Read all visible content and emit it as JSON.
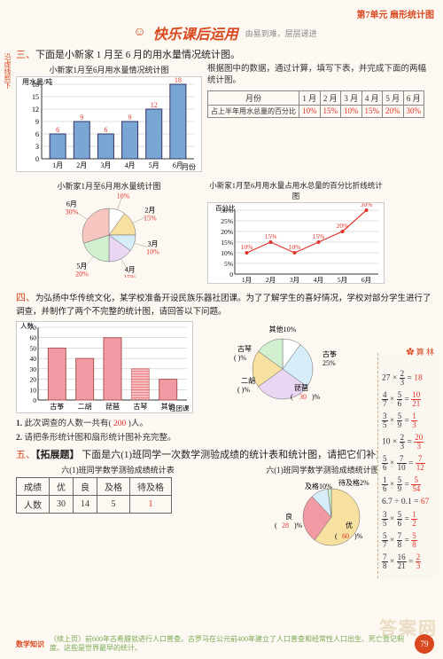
{
  "header": {
    "unit": "第7单元  扇形统计图"
  },
  "title": {
    "main": "快乐课后运用",
    "sub": "由易到难，层层递进"
  },
  "sec3": {
    "heading_num": "三、",
    "heading_text": "下面是小新家 1 月至 6 月的用水量情况统计图。",
    "bar": {
      "title": "小新家1月至6月用水量情况统计图",
      "ylabel": "用水量/吨",
      "xlabel": "月份",
      "categories": [
        "1月",
        "2月",
        "3月",
        "4月",
        "5月",
        "6月"
      ],
      "values": [
        6,
        9,
        6,
        9,
        12,
        18
      ],
      "value_labels": [
        "6",
        "9",
        "6",
        "9",
        "12",
        "18"
      ],
      "yticks": [
        0,
        3,
        6,
        9,
        12,
        15,
        18
      ],
      "bar_color": "#79a6d2",
      "grid_color": "#bbb",
      "label_color": "#e3342c"
    },
    "desc": "根据图中的数据，通过计算，填写下表，并完成下面的两幅统计图。",
    "table": {
      "head": [
        "月份",
        "1 月",
        "2 月",
        "3 月",
        "4 月",
        "5 月",
        "6 月"
      ],
      "rowlabel": "占上半年用水总量的百分比",
      "values": [
        "10%",
        "15%",
        "10%",
        "15%",
        "20%",
        "30%"
      ]
    },
    "pie": {
      "title": "小新家1月至6月用水量统计图",
      "slices": [
        {
          "label": "1月",
          "pct": 10,
          "pct_txt": "10%",
          "color": "#ffffff"
        },
        {
          "label": "2月",
          "pct": 15,
          "pct_txt": "15%",
          "color": "#f7e1a0"
        },
        {
          "label": "3月",
          "pct": 10,
          "pct_txt": "10%",
          "color": "#d6ecf7"
        },
        {
          "label": "4月",
          "pct": 15,
          "pct_txt": "15%",
          "color": "#e9d6f2"
        },
        {
          "label": "5月",
          "pct": 20,
          "pct_txt": "20%",
          "color": "#d0f0d0"
        },
        {
          "label": "6月",
          "pct": 30,
          "pct_txt": "30%",
          "color": "#f7c6c0"
        }
      ]
    },
    "line": {
      "title": "小新家1月至6月用水量占用水总量的百分比折线统计图",
      "ylabel": "百分比",
      "categories": [
        "1月",
        "2月",
        "3月",
        "4月",
        "5月",
        "6月"
      ],
      "yticks": [
        0,
        5,
        10,
        15,
        20,
        25,
        30
      ],
      "ytick_labels": [
        "0",
        "5%",
        "10%",
        "15%",
        "20%",
        "25%",
        "30%"
      ],
      "values": [
        10,
        15,
        10,
        15,
        20,
        30
      ],
      "point_labels": [
        "10%",
        "15%",
        "10%",
        "15%",
        "20%",
        "30%"
      ],
      "line_color": "#e3342c",
      "grid_color": "#bbb"
    }
  },
  "sec4": {
    "heading_num": "四、",
    "heading_text": "为弘扬中华传统文化，某学校准备开设民族乐器社团课。为了了解学生的喜好情况，学校对部分学生进行了调查，并制作了两个不完整的统计图，请回答以下问题。",
    "bar": {
      "ylabel": "人数",
      "xlabel": "社团课",
      "categories": [
        "古筝",
        "二胡",
        "琵琶",
        "古琴",
        "其他"
      ],
      "values": [
        50,
        40,
        60,
        30,
        20
      ],
      "yticks": [
        0,
        10,
        20,
        30,
        40,
        50,
        60,
        70
      ],
      "bar_color": "#f29aa3",
      "hatched_index": 3,
      "grid_color": "#bbb"
    },
    "pie": {
      "slices": [
        {
          "label": "其他",
          "pct": 10,
          "txt": "其他10%",
          "color": "#fff"
        },
        {
          "label": "古筝",
          "pct": 25,
          "txt": "古筝25%",
          "color": "#d6ecf7"
        },
        {
          "label": "琵琶",
          "pct": 30,
          "txt": "琵琶( 30 )%",
          "ans": "30",
          "color": "#e9d6f2"
        },
        {
          "label": "二胡",
          "pct": 20,
          "txt": "二胡(  )%",
          "color": "#f7e1a0"
        },
        {
          "label": "古琴",
          "pct": 15,
          "txt": "古琴(  )%",
          "color": "#d0f0d0"
        }
      ]
    },
    "q1_label": "1.",
    "q1": "此次调查的人数一共有(",
    "q1_ans": " 200 ",
    "q1_tail": ")人。",
    "q2_label": "2.",
    "q2": "请把条形统计图和扇形统计图补充完整。"
  },
  "sec5": {
    "heading_num": "五、",
    "heading_tag": "【拓展题】",
    "heading_text": "下面是六(1)班同学一次数学测验成绩的统计表和统计图，请把它们补充完整。",
    "table_title": "六(1)班同学数学测验成绩统计表",
    "table": {
      "head": [
        "成绩",
        "优",
        "良",
        "及格",
        "待及格"
      ],
      "row": [
        "人数",
        "30",
        "14",
        "5",
        "1"
      ],
      "ans_index": 4
    },
    "pie_title": "六(1)班同学数学测验成绩统计图",
    "pie": {
      "slices": [
        {
          "label": "优",
          "txt": "优( 60 )%",
          "pct": 60,
          "ans": "60",
          "color": "#f7e1a0"
        },
        {
          "label": "良",
          "txt": "良( 28 )%",
          "pct": 28,
          "ans": "28",
          "color": "#f29aa3"
        },
        {
          "label": "及格",
          "txt": "及格10%",
          "pct": 10,
          "color": "#d6ecf7"
        },
        {
          "label": "待及格",
          "txt": "待及格2%",
          "pct": 2,
          "color": "#d0f0d0"
        }
      ]
    }
  },
  "sidebar": {
    "title": "算 林",
    "items": [
      {
        "expr": "27 × ",
        "f1n": "2",
        "f1d": "3",
        "eq": " = ",
        "ans": "18"
      },
      {
        "f1n": "4",
        "f1d": "7",
        "op": " × ",
        "f2n": "5",
        "f2d": "6",
        "eq": " = ",
        "ansn": "10",
        "ansd": "21"
      },
      {
        "f1n": "3",
        "f1d": "5",
        "op": " × ",
        "f2n": "5",
        "f2d": "9",
        "eq": " = ",
        "ansn": "1",
        "ansd": "3"
      },
      {
        "expr": "10 × ",
        "f1n": "2",
        "f1d": "3",
        "eq": " = ",
        "ansn": "20",
        "ansd": "3"
      },
      {
        "f1n": "5",
        "f1d": "6",
        "op": " × ",
        "f2n": "7",
        "f2d": "10",
        "eq": " = ",
        "ansn": "7",
        "ansd": "12"
      },
      {
        "f1n": "1",
        "f1d": "6",
        "op": " × ",
        "f2n": "5",
        "f2d": "9",
        "eq": " = ",
        "ansn": "5",
        "ansd": "54"
      },
      {
        "expr": "6.7 ÷ 0.1 = ",
        "ans": "67"
      },
      {
        "f1n": "3",
        "f1d": "5",
        "op": " × ",
        "f2n": "5",
        "f2d": "6",
        "eq": " = ",
        "ansn": "1",
        "ansd": "2"
      },
      {
        "f1n": "5",
        "f1d": "7",
        "op": " × ",
        "f2n": "7",
        "f2d": "8",
        "eq": " = ",
        "ansn": "5",
        "ansd": "8"
      },
      {
        "f1n": "7",
        "f1d": "8",
        "op": " × ",
        "f2n": "16",
        "f2d": "21",
        "eq": " = ",
        "ansn": "2",
        "ansd": "3"
      }
    ]
  },
  "footer": {
    "label": "数学知识",
    "text": "（续上页）前600年古希腊就进行人口普查。古罗马在公元前400年建立了人口普查和经常性人口出生、死亡登记制度。这些是世界最早的统计。",
    "page": "79"
  },
  "left_strip": "沿虚线剪下",
  "watermark": "答案网"
}
